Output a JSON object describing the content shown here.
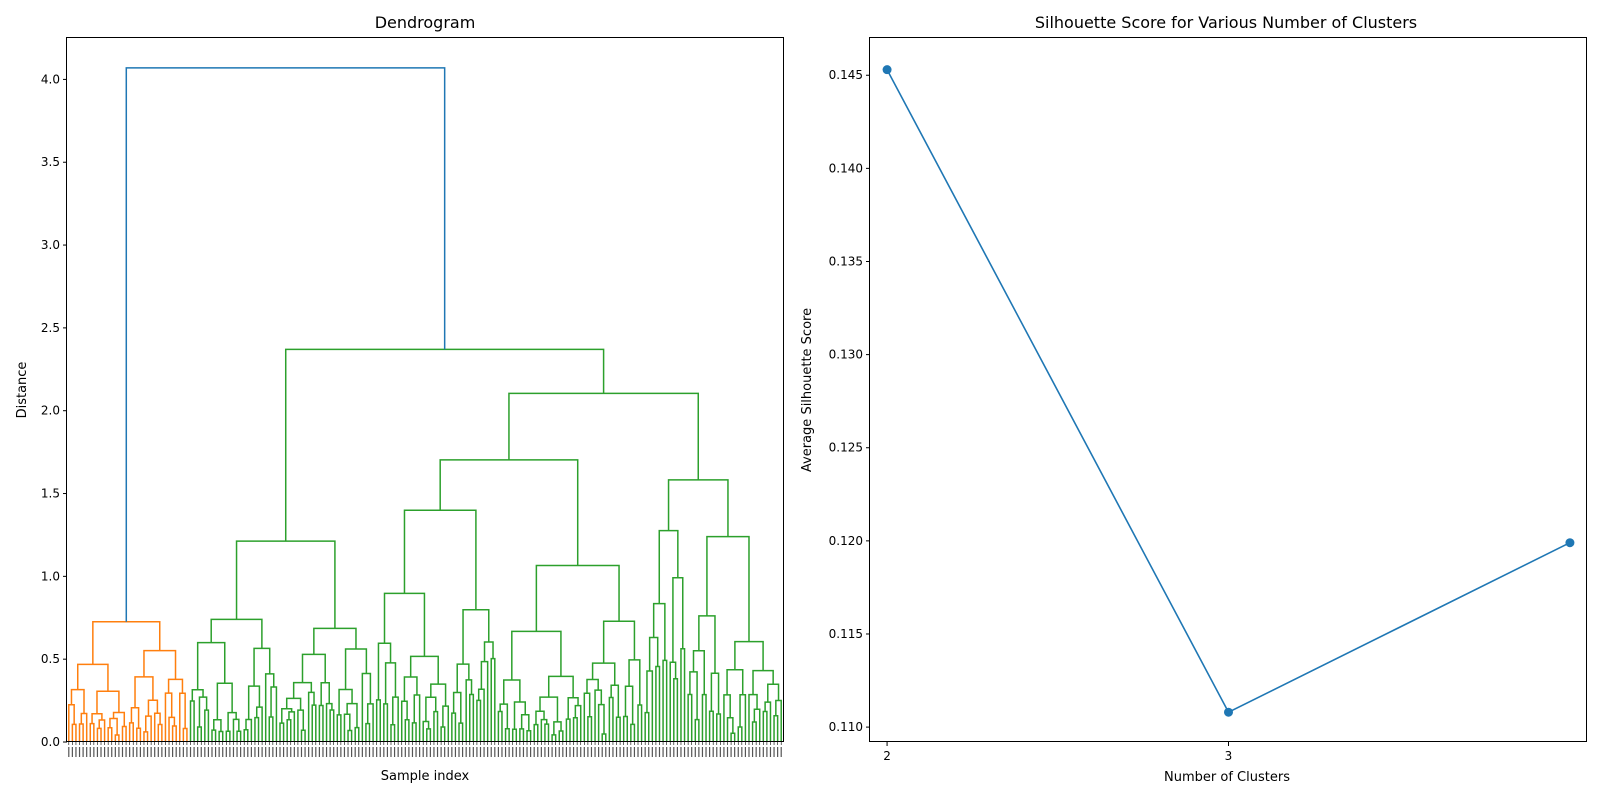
{
  "chart_data": [
    {
      "type": "dendrogram",
      "title": "Dendrogram",
      "xlabel": "Sample index",
      "ylabel": "Distance",
      "ylim": [
        0,
        4.25
      ],
      "yticks": [
        "0.0",
        "0.5",
        "1.0",
        "1.5",
        "2.0",
        "2.5",
        "3.0",
        "3.5",
        "4.0"
      ],
      "colors": {
        "root": "#1f77b4",
        "cluster_1": "#ff7f0e",
        "cluster_2": "#2ca02c"
      },
      "clusters": [
        {
          "name": "cluster_1",
          "leaf_range": [
            0,
            34
          ],
          "merge_height": 0.8
        },
        {
          "name": "cluster_2",
          "leaf_range": [
            34,
            200
          ],
          "merge_height": 2.37
        }
      ],
      "root_merge_height": 4.07,
      "upper_merges": [
        {
          "height": 2.24,
          "note": "second level"
        },
        {
          "height": 2.17,
          "note": "third level"
        },
        {
          "height": 1.92,
          "note": "fourth level"
        },
        {
          "height": 1.62
        },
        {
          "height": 1.5
        },
        {
          "height": 1.45
        },
        {
          "height": 1.39
        },
        {
          "height": 1.3
        },
        {
          "height": 1.27
        },
        {
          "height": 1.27
        },
        {
          "height": 1.26
        },
        {
          "height": 1.23
        },
        {
          "height": 1.19
        },
        {
          "height": 1.17
        },
        {
          "height": 1.11
        },
        {
          "height": 1.11
        },
        {
          "height": 1.02
        }
      ]
    },
    {
      "type": "line",
      "title": "Silhouette Score for Various Number of Clusters",
      "xlabel": "Number of Clusters",
      "ylabel": "Average Silhouette Score",
      "x": [
        2,
        3,
        4
      ],
      "xticks": [
        "2",
        "3"
      ],
      "series": [
        {
          "values": [
            0.1453,
            0.1108,
            0.1199
          ],
          "color": "#1f77b4"
        }
      ],
      "ylim": [
        0.1092,
        0.147
      ],
      "yticks": [
        "0.110",
        "0.115",
        "0.120",
        "0.125",
        "0.130",
        "0.135",
        "0.140",
        "0.145"
      ]
    }
  ]
}
